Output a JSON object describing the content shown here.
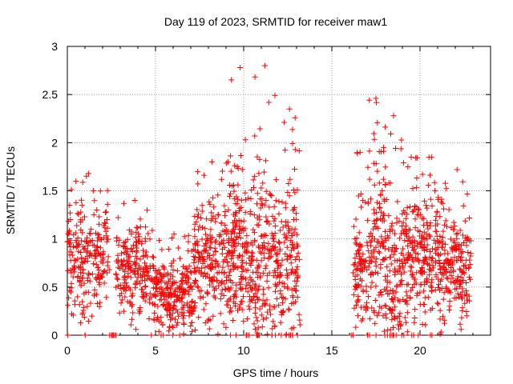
{
  "chart_data": {
    "type": "scatter",
    "title": "Day 119 of 2023, SRMTID for receiver maw1",
    "xlabel": "GPS time / hours",
    "ylabel": "SRMTID / TECUs",
    "xlim": [
      0,
      24
    ],
    "ylim": [
      0,
      3
    ],
    "xticks": [
      0,
      5,
      10,
      15,
      20
    ],
    "xtick_labels": [
      "0",
      "5",
      "10",
      "15",
      "20"
    ],
    "yticks": [
      0,
      0.5,
      1,
      1.5,
      2,
      2.5,
      3
    ],
    "ytick_labels": [
      "0",
      "0.5",
      "1",
      "1.5",
      "2",
      "2.5",
      "3"
    ],
    "grid": true,
    "marker": "+",
    "color": "#ff0000",
    "series": [
      {
        "name": "maw1",
        "segments": [
          {
            "x_start": 0.0,
            "x_end": 2.4,
            "base": 0.75,
            "spread": 0.3,
            "max": 1.68,
            "count": 230
          },
          {
            "x_start": 2.75,
            "x_end": 4.9,
            "base": 0.65,
            "spread": 0.28,
            "max": 1.4,
            "count": 210
          },
          {
            "x_start": 4.9,
            "x_end": 7.2,
            "base": 0.4,
            "spread": 0.18,
            "max": 1.05,
            "count": 250
          },
          {
            "x_start": 7.2,
            "x_end": 9.2,
            "base": 0.75,
            "spread": 0.32,
            "max": 1.8,
            "count": 230
          },
          {
            "x_start": 9.2,
            "x_end": 10.4,
            "base": 0.8,
            "spread": 0.45,
            "max": 2.78,
            "count": 170
          },
          {
            "x_start": 10.4,
            "x_end": 12.0,
            "base": 0.75,
            "spread": 0.45,
            "max": 2.8,
            "count": 200
          },
          {
            "x_start": 12.0,
            "x_end": 13.2,
            "base": 0.7,
            "spread": 0.45,
            "max": 2.35,
            "count": 140
          },
          {
            "x_start": 16.2,
            "x_end": 17.0,
            "base": 0.6,
            "spread": 0.3,
            "max": 1.9,
            "count": 90
          },
          {
            "x_start": 17.0,
            "x_end": 18.0,
            "base": 0.85,
            "spread": 0.45,
            "max": 2.46,
            "count": 120
          },
          {
            "x_start": 18.0,
            "x_end": 19.0,
            "base": 0.5,
            "spread": 0.45,
            "max": 2.28,
            "count": 120
          },
          {
            "x_start": 19.0,
            "x_end": 20.0,
            "base": 0.8,
            "spread": 0.4,
            "max": 1.85,
            "count": 120
          },
          {
            "x_start": 20.0,
            "x_end": 21.3,
            "base": 0.75,
            "spread": 0.35,
            "max": 1.85,
            "count": 160
          },
          {
            "x_start": 21.3,
            "x_end": 22.9,
            "base": 0.7,
            "spread": 0.25,
            "max": 1.72,
            "count": 170
          }
        ],
        "baseline_points": [
          2.4,
          2.5,
          2.55,
          2.6,
          2.65,
          2.75,
          10.3,
          10.8,
          11.6,
          11.8,
          12.4,
          16.1,
          16.2,
          18.0,
          18.3,
          18.5,
          19.9
        ]
      }
    ]
  }
}
